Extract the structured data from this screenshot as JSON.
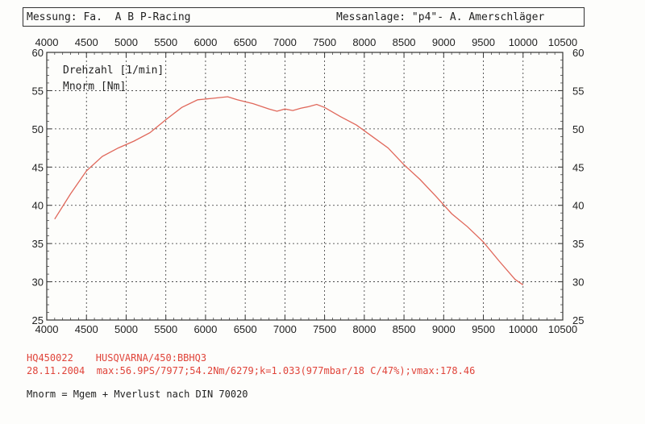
{
  "header": {
    "left": "Messung: Fa.  A B P-Racing",
    "right": "Messanlage: \"p4\"- A. Amerschläger"
  },
  "legend": [
    "Drehzahl [1/min]",
    "Mnorm [Nm]"
  ],
  "info": {
    "id": "HQ450022",
    "vehicle": "HUSQVARNA/450:BBHQ3",
    "date": "28.11.2004",
    "summary": "max:56.9PS/7977;54.2Nm/6279;k=1.033(977mbar/18 C/47%);vmax:178.46",
    "note": "Mnorm = Mgem + Mverlust nach DIN 70020"
  },
  "colors": {
    "curve": "#e0675a",
    "text_red": "#e0443a",
    "grid": "#333333"
  },
  "chart_data": {
    "type": "line",
    "title": "",
    "xlabel": "Drehzahl [1/min]",
    "ylabel": "Mnorm [Nm]",
    "xlim": [
      4000,
      10500
    ],
    "ylim": [
      25,
      60
    ],
    "x_ticks": [
      "4000",
      "4500",
      "5000",
      "5500",
      "6000",
      "6500",
      "7000",
      "7500",
      "8000",
      "8500",
      "9000",
      "9500",
      "10000",
      "10500"
    ],
    "y_ticks": [
      "25",
      "30",
      "35",
      "40",
      "45",
      "50",
      "55",
      "60"
    ],
    "grid": true,
    "series": [
      {
        "name": "Mnorm",
        "x": [
          4100,
          4300,
          4500,
          4700,
          4900,
          5100,
          5300,
          5500,
          5700,
          5900,
          6100,
          6279,
          6400,
          6600,
          6800,
          6900,
          7000,
          7100,
          7200,
          7300,
          7400,
          7500,
          7700,
          7900,
          8100,
          8300,
          8500,
          8700,
          8900,
          9100,
          9300,
          9500,
          9700,
          9900,
          10000
        ],
        "y": [
          38.2,
          41.5,
          44.5,
          46.4,
          47.5,
          48.4,
          49.5,
          51.2,
          52.8,
          53.8,
          54.0,
          54.2,
          53.8,
          53.3,
          52.6,
          52.3,
          52.6,
          52.4,
          52.7,
          52.9,
          53.2,
          52.8,
          51.6,
          50.5,
          49.0,
          47.5,
          45.3,
          43.4,
          41.2,
          38.9,
          37.2,
          35.2,
          32.7,
          30.3,
          29.6
        ]
      }
    ]
  }
}
